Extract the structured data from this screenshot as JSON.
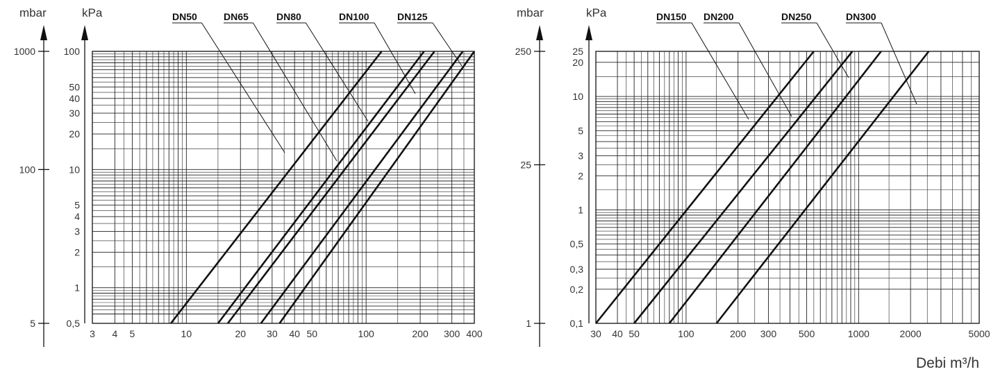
{
  "chart_data": [
    {
      "type": "line",
      "x_scale": "log",
      "y_scale": "log",
      "xlim": [
        3,
        400
      ],
      "ylim": [
        0.5,
        100
      ],
      "x_ticks": [
        3,
        4,
        5,
        10,
        20,
        30,
        40,
        50,
        100,
        200,
        300,
        400
      ],
      "x_tick_labels": [
        "3",
        "4",
        "5",
        "10",
        "20",
        "30",
        "40",
        "50",
        "100",
        "200",
        "300",
        "400"
      ],
      "y_ticks": [
        0.5,
        1,
        2,
        3,
        4,
        5,
        10,
        20,
        30,
        40,
        50,
        100
      ],
      "y_tick_labels": [
        "0,5",
        "1",
        "2",
        "3",
        "4",
        "5",
        "10",
        "20",
        "30",
        "40",
        "50",
        "100"
      ],
      "y_unit_primary": "kPa",
      "y_unit_secondary": "mbar",
      "secondary_ticks": [
        5,
        100,
        1000
      ],
      "secondary_tick_labels": [
        "5",
        "100",
        "1000"
      ],
      "grid": true,
      "series": [
        {
          "name": "DN50",
          "x": [
            8.2,
            122
          ],
          "y": [
            0.5,
            100
          ]
        },
        {
          "name": "DN65",
          "x": [
            15,
            210
          ],
          "y": [
            0.5,
            100
          ]
        },
        {
          "name": "DN80",
          "x": [
            17,
            240
          ],
          "y": [
            0.5,
            100
          ]
        },
        {
          "name": "DN100",
          "x": [
            26,
            345
          ],
          "y": [
            0.5,
            100
          ]
        },
        {
          "name": "DN125",
          "x": [
            33,
            400
          ],
          "y": [
            0.5,
            100
          ]
        }
      ]
    },
    {
      "type": "line",
      "x_scale": "log",
      "y_scale": "log",
      "xlim": [
        30,
        5000
      ],
      "ylim": [
        0.1,
        25
      ],
      "x_ticks": [
        30,
        40,
        50,
        100,
        200,
        300,
        500,
        1000,
        2000,
        5000
      ],
      "x_tick_labels": [
        "30",
        "40",
        "50",
        "100",
        "200",
        "300",
        "500",
        "1000",
        "2000",
        "5000"
      ],
      "y_ticks": [
        0.1,
        0.2,
        0.3,
        0.5,
        1,
        2,
        3,
        5,
        10,
        20,
        25
      ],
      "y_tick_labels": [
        "0,1",
        "0,2",
        "0,3",
        "0,5",
        "1",
        "2",
        "3",
        "5",
        "10",
        "20",
        "25"
      ],
      "y_unit_primary": "kPa",
      "y_unit_secondary": "mbar",
      "secondary_ticks": [
        1,
        25,
        250
      ],
      "secondary_tick_labels": [
        "1",
        "25",
        "250"
      ],
      "xlabel": "Debi m³/h",
      "grid": true,
      "series": [
        {
          "name": "DN150",
          "x": [
            30,
            550
          ],
          "y": [
            0.1,
            25
          ]
        },
        {
          "name": "DN200",
          "x": [
            50,
            920
          ],
          "y": [
            0.1,
            25
          ]
        },
        {
          "name": "DN250",
          "x": [
            80,
            1350
          ],
          "y": [
            0.1,
            25
          ]
        },
        {
          "name": "DN300",
          "x": [
            150,
            2550
          ],
          "y": [
            0.1,
            25
          ]
        }
      ]
    }
  ]
}
